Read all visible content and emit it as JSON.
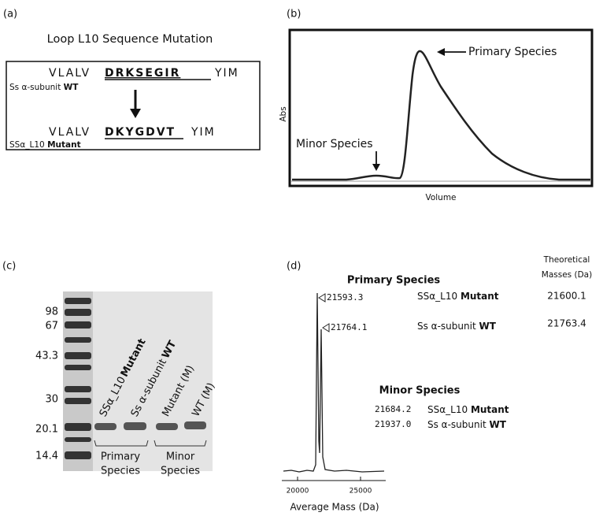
{
  "panel_a": {
    "label": "(a)",
    "title": "Loop L10 Sequence Mutation",
    "wt": {
      "seq_start": "VLALV",
      "seq_loop": "DRKSEGIR",
      "seq_end": "YIM",
      "name": "Ss α-subunit",
      "name_bold": "WT"
    },
    "mutant": {
      "seq_start": "VLALV",
      "seq_loop": "DKYGDVT",
      "seq_end": "YIM",
      "name": "SSα_L10",
      "name_bold": "Mutant"
    }
  },
  "panel_b": {
    "label": "(b)",
    "y_label": "Abs",
    "x_label": "Volume",
    "primary": "Primary Species",
    "minor": "Minor Species"
  },
  "panel_c": {
    "label": "(c)",
    "ladder": [
      "98",
      "67",
      "43.3",
      "30",
      "20.1",
      "14.4"
    ],
    "lanes": [
      {
        "name": "SSα_L10",
        "bold": "Mutant"
      },
      {
        "name": "Ss α-subunit",
        "bold": "WT"
      },
      {
        "name": "Mutant (M)",
        "bold": null
      },
      {
        "name": "WT (M)",
        "bold": null
      }
    ],
    "groups": [
      [
        "Primary",
        "Species"
      ],
      [
        "Minor",
        "Species"
      ]
    ]
  },
  "panel_d": {
    "label": "(d)",
    "theoretical_header": [
      "Theoretical",
      "Masses (Da)"
    ],
    "primary_title": "Primary Species",
    "primary": [
      {
        "mass": "21593.3",
        "name": "SSα_L10",
        "bold": "Mutant",
        "theoretical": "21600.1"
      },
      {
        "mass": "21764.1",
        "name": "Ss α-subunit",
        "bold": "WT",
        "theoretical": "21763.4"
      }
    ],
    "minor_title": "Minor Species",
    "minor": [
      {
        "mass": "21684.2",
        "name": "SSα_L10",
        "bold": "Mutant"
      },
      {
        "mass": "21937.0",
        "name": "Ss α-subunit",
        "bold": "WT"
      }
    ],
    "x_ticks": [
      "20000",
      "25000"
    ],
    "x_label": "Average Mass (Da)"
  }
}
